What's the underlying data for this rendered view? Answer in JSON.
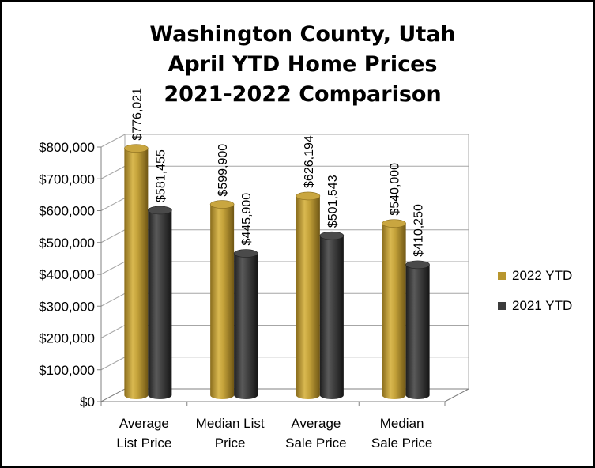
{
  "chart_data": {
    "type": "bar",
    "title_lines": [
      "Washington County, Utah",
      "April YTD Home Prices",
      "2021-2022 Comparison"
    ],
    "xlabel": "",
    "ylabel": "",
    "categories": [
      [
        "Average",
        "List Price"
      ],
      [
        "Median List",
        "Price"
      ],
      [
        "Average",
        "Sale Price"
      ],
      [
        "Median",
        "Sale Price"
      ]
    ],
    "series": [
      {
        "name": "2022 YTD",
        "color": "#B8962E",
        "values": [
          776021,
          599900,
          626194,
          540000
        ],
        "labels": [
          "$776,021",
          "$599,900",
          "$626,194",
          "$540,000"
        ]
      },
      {
        "name": "2021 YTD",
        "color": "#3C3C3C",
        "values": [
          581455,
          445900,
          501543,
          410250
        ],
        "labels": [
          "$581,455",
          "$445,900",
          "$501,543",
          "$410,250"
        ]
      }
    ],
    "ylim": [
      0,
      800000
    ],
    "yticks": [
      0,
      100000,
      200000,
      300000,
      400000,
      500000,
      600000,
      700000,
      800000
    ],
    "ytick_labels": [
      "$0",
      "$100,000",
      "$200,000",
      "$300,000",
      "$400,000",
      "$500,000",
      "$600,000",
      "$700,000",
      "$800,000"
    ],
    "grid": true,
    "legend_position": "right",
    "style": "3d-cylinder"
  }
}
